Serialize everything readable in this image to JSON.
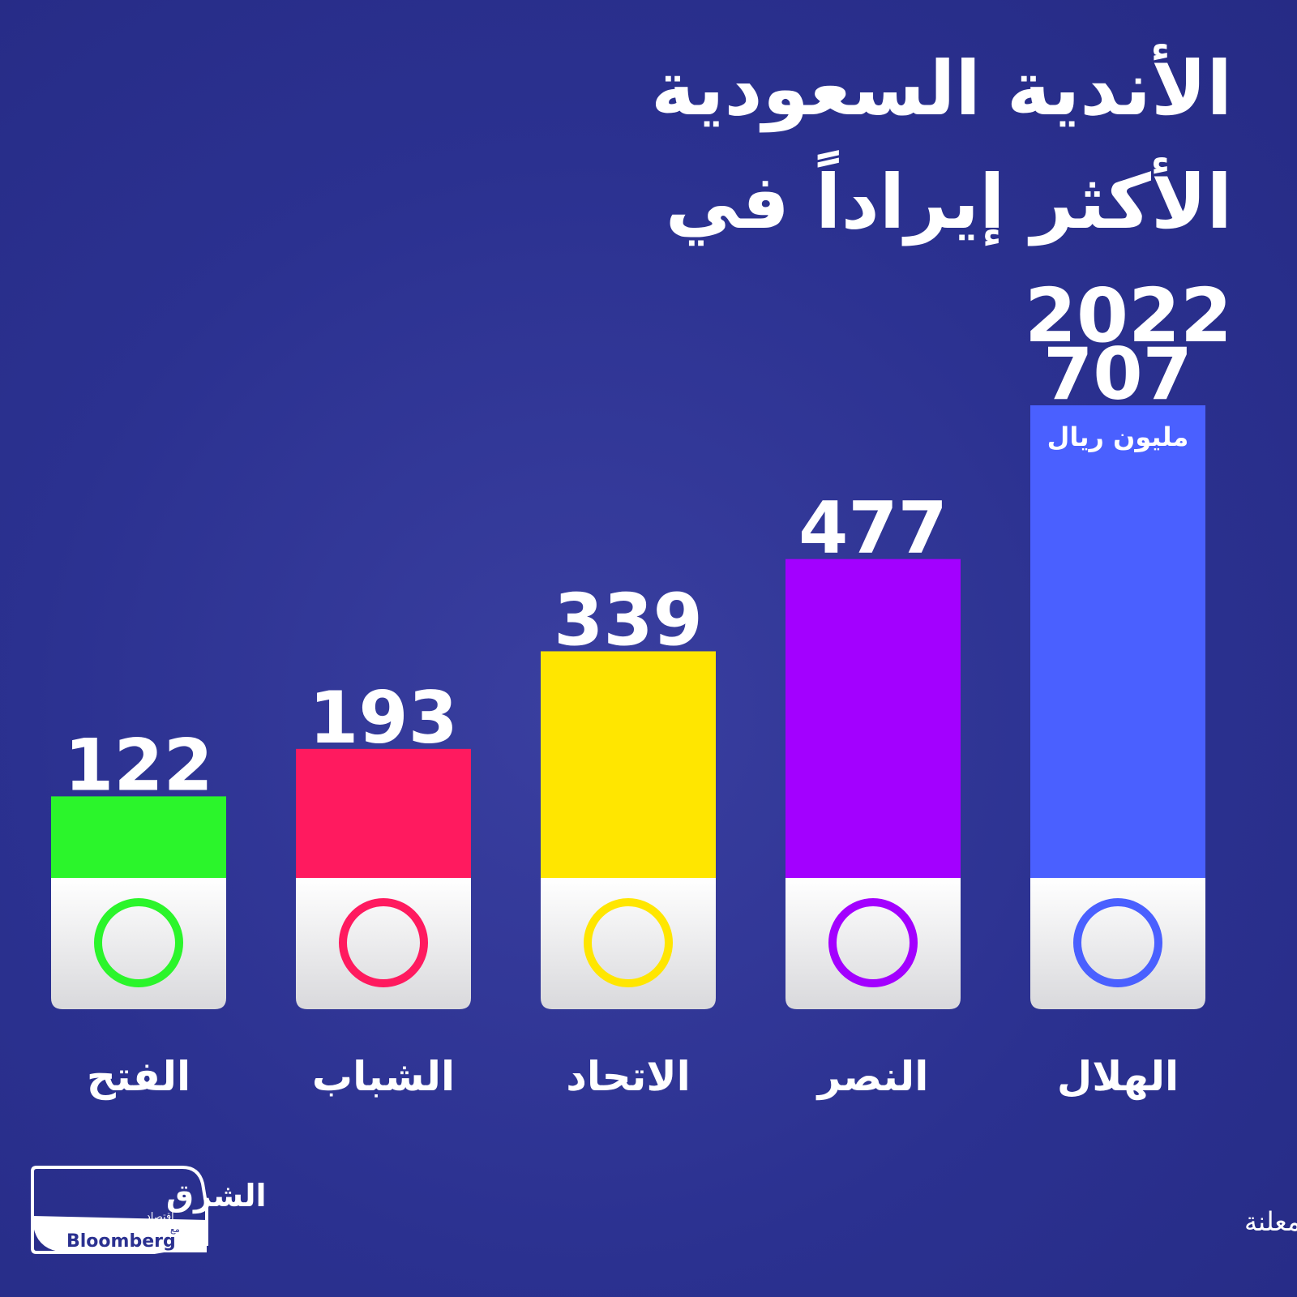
{
  "chart_data": {
    "type": "bar",
    "title": "الأندية السعودية الأكثر إيراداً في 2022",
    "value_unit": "مليون ريال",
    "categories": [
      "الفتح",
      "الشباب",
      "الاتحاد",
      "النصر",
      "الهلال"
    ],
    "values": [
      122,
      193,
      339,
      477,
      707
    ],
    "colors": [
      "#2bf52b",
      "#ff1a5f",
      "#ffe600",
      "#a300ff",
      "#4a60ff"
    ]
  },
  "source": "المصدر: بيانات جمعتها الشرق من ميزانيات الأندية المعلنة",
  "logo": {
    "name": "الشرق",
    "sub": "اقتصاد",
    "with": "مع",
    "partner": "Bloomberg"
  }
}
